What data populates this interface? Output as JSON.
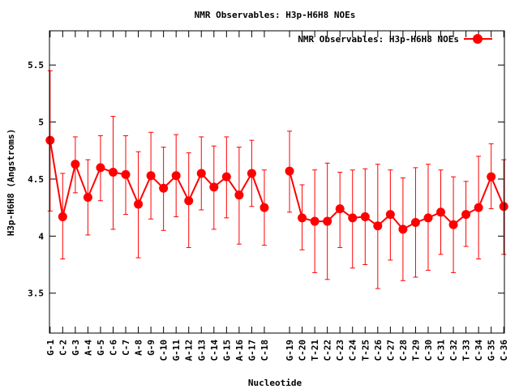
{
  "chart_data": {
    "type": "line",
    "title": "NMR Observables: H3p-H6H8 NOEs",
    "xlabel": "Nucleotide",
    "ylabel": "H3p-H6H8 (Angstroms)",
    "ylim": [
      3.15,
      5.8
    ],
    "yticks": [
      3.5,
      4,
      4.5,
      5,
      5.5
    ],
    "ytick_labels": [
      "3.5",
      "4",
      "4.5",
      "5",
      "5.5"
    ],
    "legend_position": "top-right",
    "color": "#ff0000",
    "categories": [
      "G-1",
      "C-2",
      "G-3",
      "A-4",
      "G-5",
      "C-6",
      "C-7",
      "A-8",
      "G-9",
      "C-10",
      "G-11",
      "A-12",
      "G-13",
      "C-14",
      "G-15",
      "A-16",
      "G-17",
      "C-18",
      "G-19",
      "C-20",
      "T-21",
      "C-22",
      "C-23",
      "C-24",
      "T-25",
      "C-26",
      "C-27",
      "C-28",
      "T-29",
      "C-30",
      "C-31",
      "C-32",
      "T-33",
      "C-34",
      "G-35",
      "C-36"
    ],
    "x": [
      1,
      2,
      3,
      4,
      5,
      6,
      7,
      8,
      9,
      10,
      11,
      12,
      13,
      14,
      15,
      16,
      17,
      18,
      20,
      21,
      22,
      23,
      24,
      25,
      26,
      27,
      28,
      29,
      30,
      31,
      32,
      33,
      34,
      35,
      36,
      37
    ],
    "xlim": [
      0.95,
      37.05
    ],
    "series": [
      {
        "name": "NMR Observables: H3p-H6H8 NOEs",
        "segments": [
          [
            0,
            17
          ],
          [
            18,
            35
          ]
        ],
        "values": [
          4.84,
          4.17,
          4.63,
          4.34,
          4.6,
          4.56,
          4.54,
          4.28,
          4.53,
          4.42,
          4.53,
          4.31,
          4.55,
          4.43,
          4.52,
          4.36,
          4.55,
          4.25,
          4.57,
          4.16,
          4.13,
          4.13,
          4.24,
          4.16,
          4.17,
          4.09,
          4.19,
          4.06,
          4.12,
          4.16,
          4.21,
          4.1,
          4.19,
          4.25,
          4.52,
          4.26
        ],
        "err_low": [
          4.22,
          3.8,
          4.38,
          4.01,
          4.31,
          4.06,
          4.19,
          3.81,
          4.15,
          4.05,
          4.17,
          3.9,
          4.23,
          4.06,
          4.16,
          3.93,
          4.26,
          3.92,
          4.21,
          3.88,
          3.68,
          3.62,
          3.9,
          3.72,
          3.75,
          3.54,
          3.79,
          3.61,
          3.64,
          3.7,
          3.84,
          3.68,
          3.91,
          3.8,
          4.24,
          3.84
        ],
        "err_high": [
          5.45,
          4.55,
          4.87,
          4.67,
          4.88,
          5.05,
          4.88,
          4.74,
          4.91,
          4.78,
          4.89,
          4.73,
          4.87,
          4.79,
          4.87,
          4.78,
          4.84,
          4.58,
          4.92,
          4.45,
          4.58,
          4.64,
          4.56,
          4.58,
          4.59,
          4.63,
          4.58,
          4.51,
          4.6,
          4.63,
          4.58,
          4.52,
          4.48,
          4.7,
          4.81,
          4.67
        ]
      }
    ]
  }
}
